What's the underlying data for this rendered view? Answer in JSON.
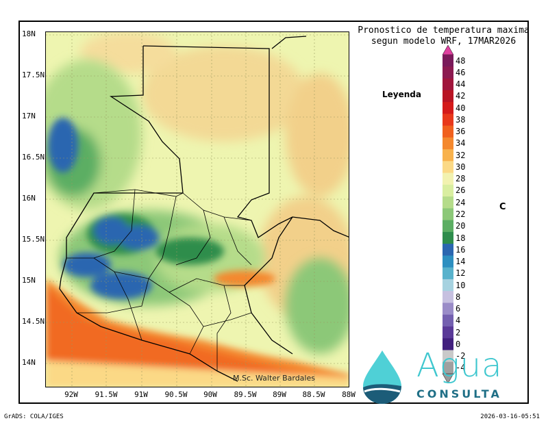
{
  "map": {
    "title_line1": "Pronostico de temperatura maxima",
    "title_line2": "segun modelo WRF, 17MAR2026",
    "legend_label": "Leyenda",
    "unit": "C",
    "credit": "M.Sc. Walter Bardales",
    "lat_labels": [
      "18N",
      "17.5N",
      "17N",
      "16.5N",
      "16N",
      "15.5N",
      "15N",
      "14.5N",
      "14N"
    ],
    "lon_labels": [
      "92W",
      "91.5W",
      "91W",
      "90.5W",
      "90W",
      "89.5W",
      "89W",
      "88.5W",
      "88W"
    ],
    "colorbar_ticks": [
      "48",
      "46",
      "44",
      "42",
      "40",
      "38",
      "36",
      "34",
      "32",
      "30",
      "28",
      "26",
      "24",
      "22",
      "20",
      "18",
      "16",
      "14",
      "12",
      "10",
      "8",
      "6",
      "4",
      "2",
      "0",
      "-2",
      "-4"
    ],
    "colorbar_colors": [
      "#7a1a5a",
      "#8c1a50",
      "#a0153c",
      "#b81423",
      "#d41a1a",
      "#e8381b",
      "#f0601e",
      "#f4882e",
      "#f8b24d",
      "#fbd986",
      "#f2f2b0",
      "#d9eea0",
      "#b5dc8a",
      "#8cc878",
      "#5cae63",
      "#2e8d4c",
      "#2b66b0",
      "#2d8fc0",
      "#58b2cc",
      "#a6d2e0",
      "#c6c0e0",
      "#9a8cc8",
      "#7460b0",
      "#5a3a98",
      "#42207e",
      "#c9c9c9",
      "#a0a0a0"
    ],
    "colorbar_top_color": "#e040a0",
    "colorbar_bottom_color": "#999999"
  },
  "footer": {
    "left": "GrADS: COLA/IGES",
    "right": "2026-03-16-05:51"
  },
  "logo": {
    "word1": "Agua",
    "word2": "CONSULTA",
    "colors": {
      "drop_top": "#4fd0d6",
      "drop_bottom": "#1c5c78"
    }
  }
}
